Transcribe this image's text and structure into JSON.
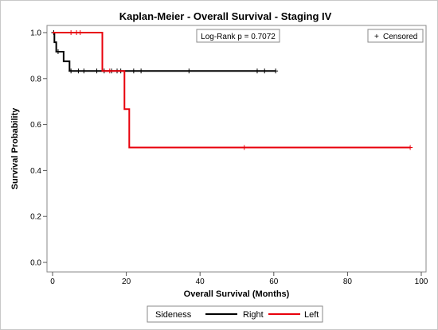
{
  "chart_data": {
    "type": "line",
    "subtype": "kaplan-meier step",
    "title": "Kaplan-Meier - Overall Survival - Staging IV",
    "xlabel": "Overall Survival (Months)",
    "ylabel": "Survival Probability",
    "xlim": [
      0,
      100
    ],
    "ylim": [
      0,
      1.0
    ],
    "xticks": [
      0,
      20,
      40,
      60,
      80,
      100
    ],
    "yticks": [
      0.0,
      0.2,
      0.4,
      0.6,
      0.8,
      1.0
    ],
    "xtick_labels": [
      "0",
      "20",
      "40",
      "60",
      "80",
      "100"
    ],
    "ytick_labels": [
      "0.0",
      "0.2",
      "0.4",
      "0.6",
      "0.8",
      "1.0"
    ],
    "annotation": "Log-Rank p = 0.7072",
    "censored_label": "Censored",
    "censored_symbol": "+",
    "legend": {
      "title": "Sideness",
      "placement": "bottom"
    },
    "series": [
      {
        "name": "Right",
        "color": "#000000",
        "steps": [
          [
            0,
            1.0
          ],
          [
            0.5,
            0.958
          ],
          [
            1.0,
            0.917
          ],
          [
            3.0,
            0.875
          ],
          [
            4.6,
            0.833
          ],
          [
            60.5,
            0.833
          ]
        ],
        "censored": [
          [
            0.3,
            1.0
          ],
          [
            1.5,
            0.917
          ],
          [
            5.0,
            0.833
          ],
          [
            7.0,
            0.833
          ],
          [
            8.5,
            0.833
          ],
          [
            12.0,
            0.833
          ],
          [
            14.0,
            0.833
          ],
          [
            16.0,
            0.833
          ],
          [
            17.5,
            0.833
          ],
          [
            18.5,
            0.833
          ],
          [
            22.0,
            0.833
          ],
          [
            24.0,
            0.833
          ],
          [
            37.0,
            0.833
          ],
          [
            55.5,
            0.833
          ],
          [
            57.5,
            0.833
          ],
          [
            60.5,
            0.833
          ]
        ]
      },
      {
        "name": "Left",
        "color": "#e8000b",
        "steps": [
          [
            0,
            1.0
          ],
          [
            13.5,
            0.833
          ],
          [
            19.5,
            0.667
          ],
          [
            20.8,
            0.5
          ],
          [
            97,
            0.5
          ]
        ],
        "censored": [
          [
            5.0,
            1.0
          ],
          [
            6.5,
            1.0
          ],
          [
            7.5,
            1.0
          ],
          [
            15.5,
            0.833
          ],
          [
            52.0,
            0.5
          ],
          [
            97.0,
            0.5
          ]
        ]
      }
    ]
  }
}
